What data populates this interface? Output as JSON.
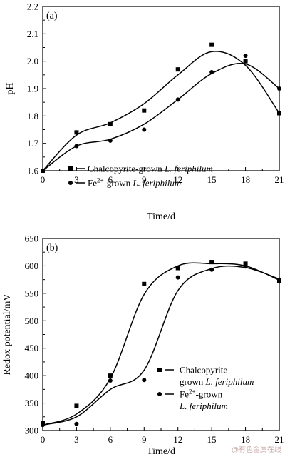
{
  "watermark": "@有色金属在线",
  "chart_data": [
    {
      "type": "scatter",
      "panel_label": "(a)",
      "xlabel": "Time/d",
      "ylabel": "pH",
      "xlim": [
        0,
        21
      ],
      "ylim": [
        1.6,
        2.2
      ],
      "xticks": [
        0,
        3,
        6,
        9,
        12,
        15,
        18,
        21
      ],
      "yticks": [
        1.6,
        1.7,
        1.8,
        1.9,
        2.0,
        2.1,
        2.2
      ],
      "ytick_labels": [
        "1.6",
        "1.7",
        "1.8",
        "1.9",
        "2.0",
        "2.1",
        "2.2"
      ],
      "legend_position": "bottom-center",
      "series": [
        {
          "name": "Chalcopyrite-grown L. feriphilum",
          "legend_text": "Chalcopyrite-grown ",
          "legend_italic": "L. feriphilum",
          "marker": "square",
          "x": [
            0,
            3,
            6,
            9,
            12,
            15,
            18,
            21
          ],
          "y": [
            1.6,
            1.74,
            1.77,
            1.82,
            1.97,
            2.06,
            2.0,
            1.81
          ],
          "curve_x": [
            0,
            3,
            6,
            9,
            12,
            15,
            18,
            21
          ],
          "curve_y": [
            1.6,
            1.73,
            1.775,
            1.845,
            1.95,
            2.035,
            1.985,
            1.81
          ]
        },
        {
          "name": "Fe2+-grown L. feriphilum",
          "legend_text": "Fe",
          "legend_sup": "2+",
          "legend_text2": "-grown ",
          "legend_italic": "L. feriphilum",
          "marker": "circle",
          "x": [
            0,
            3,
            6,
            9,
            12,
            15,
            18,
            21
          ],
          "y": [
            1.6,
            1.69,
            1.71,
            1.75,
            1.86,
            1.96,
            2.02,
            1.9
          ],
          "curve_x": [
            0,
            3,
            6,
            9,
            12,
            15,
            18,
            21
          ],
          "curve_y": [
            1.6,
            1.69,
            1.715,
            1.77,
            1.86,
            1.955,
            1.99,
            1.9
          ]
        }
      ]
    },
    {
      "type": "scatter",
      "panel_label": "(b)",
      "xlabel": "Time/d",
      "ylabel": "Redox potential/mV",
      "xlim": [
        0,
        21
      ],
      "ylim": [
        300,
        650
      ],
      "xticks": [
        0,
        3,
        6,
        9,
        12,
        15,
        18,
        21
      ],
      "yticks": [
        300,
        350,
        400,
        450,
        500,
        550,
        600,
        650
      ],
      "ytick_labels": [
        "300",
        "350",
        "400",
        "450",
        "500",
        "550",
        "600",
        "650"
      ],
      "legend_position": "bottom-right",
      "series": [
        {
          "name": "Chalcopyrite-grown L. feriphilum",
          "legend_line1": "Chalcopyrite-",
          "legend_line2_text": "grown ",
          "legend_italic": "L. feriphilum",
          "marker": "square",
          "x": [
            0,
            3,
            6,
            9,
            12,
            15,
            18,
            21
          ],
          "y": [
            314,
            345,
            400,
            567,
            596,
            607,
            604,
            572
          ],
          "curve_x": [
            0,
            3,
            6,
            9,
            12,
            15,
            18,
            21
          ],
          "curve_y": [
            310,
            330,
            395,
            548,
            600,
            604,
            600,
            574
          ]
        },
        {
          "name": "Fe2+-grown L. feriphilum",
          "legend_line1": "Fe",
          "legend_sup": "2+",
          "legend_line1_rest": "-grown",
          "legend_italic": "L. feriphilum",
          "marker": "circle",
          "x": [
            0,
            3,
            6,
            9,
            12,
            15,
            18,
            21
          ],
          "y": [
            310,
            312,
            391,
            392,
            579,
            593,
            599,
            575
          ],
          "curve_x": [
            0,
            3,
            6,
            9,
            12,
            15,
            18,
            21
          ],
          "curve_y": [
            310,
            325,
            375,
            410,
            555,
            595,
            597,
            576
          ]
        }
      ]
    }
  ]
}
